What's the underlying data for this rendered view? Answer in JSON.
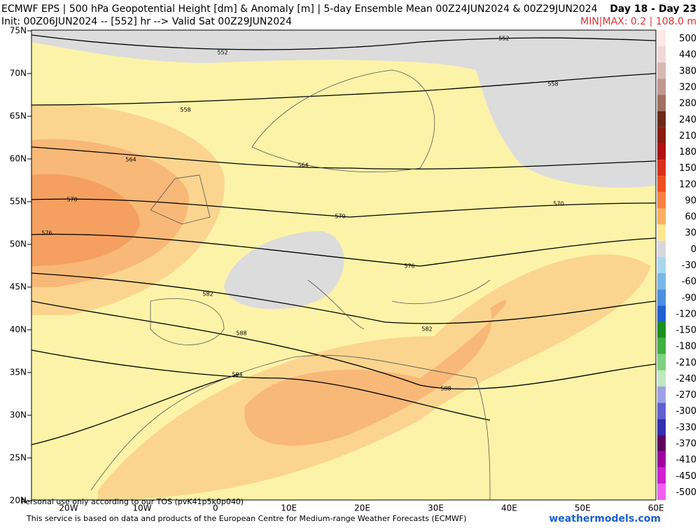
{
  "header": {
    "title": "ECMWF EPS | 500 hPa Geopotential Height [dm] & Anomaly [m] | 5-day Ensemble Mean 00Z24JUN2024 & 00Z29JUN2024",
    "period": "Day 18 - Day 23",
    "init": "Init: 00Z06JUN2024 -- [552] hr --> Valid Sat 00Z29JUN2024",
    "minmax": "MIN|MAX: 0.2 | 108.0 m"
  },
  "map": {
    "lat_labels": [
      "75N",
      "70N",
      "65N",
      "60N",
      "55N",
      "50N",
      "45N",
      "40N",
      "35N",
      "30N",
      "25N",
      "20N"
    ],
    "lon_labels": [
      "20W",
      "10W",
      "0",
      "10E",
      "20E",
      "30E",
      "40E",
      "50E",
      "60E"
    ],
    "contour_labels": [
      "552",
      "552",
      "558",
      "558",
      "564",
      "564",
      "570",
      "570",
      "570",
      "576",
      "576",
      "582",
      "582",
      "588",
      "588",
      "594"
    ]
  },
  "colorbar": {
    "labels": [
      "500",
      "440",
      "380",
      "320",
      "280",
      "240",
      "210",
      "180",
      "150",
      "120",
      "90",
      "60",
      "30",
      "0",
      "-30",
      "-60",
      "-90",
      "-120",
      "-150",
      "-180",
      "-210",
      "-240",
      "-270",
      "-300",
      "-330",
      "-370",
      "-410",
      "-450",
      "-500"
    ],
    "colors": [
      "#fde8e8",
      "#f0d8d8",
      "#d8b8b0",
      "#c09890",
      "#a07060",
      "#6d2a1a",
      "#8b1a10",
      "#b01010",
      "#d83018",
      "#f05020",
      "#f88040",
      "#fbb060",
      "#fde890",
      "#d8d8dc",
      "#a8d8f0",
      "#78b8e8",
      "#4890e0",
      "#2060d0",
      "#189020",
      "#40b040",
      "#80d080",
      "#c0e8c0",
      "#a0a0e8",
      "#6060d0",
      "#3030b0",
      "#600060",
      "#a000a0",
      "#d020d0",
      "#f060f0"
    ]
  },
  "footer": {
    "tos": "Personal use only according to our TOS (pvK41p5k0p040)",
    "source": "This service is based on data and products of the European Centre for Medium-range Weather Forecasts (ECMWF)",
    "site": "weathermodels.com"
  }
}
